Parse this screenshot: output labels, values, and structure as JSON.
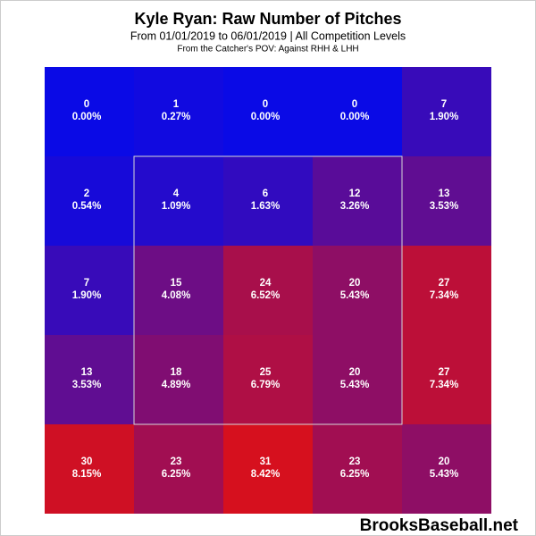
{
  "chart_data": {
    "type": "heatmap",
    "title": "Kyle Ryan: Raw Number of Pitches",
    "subtitle": "From 01/01/2019 to 06/01/2019 | All Competition Levels",
    "note": "From the Catcher's POV:  Against RHH & LHH",
    "watermark": "BrooksBaseball.net",
    "values": [
      [
        0,
        1,
        0,
        0,
        7
      ],
      [
        2,
        4,
        6,
        12,
        13
      ],
      [
        7,
        15,
        24,
        20,
        27
      ],
      [
        13,
        18,
        25,
        20,
        27
      ],
      [
        30,
        23,
        31,
        23,
        20
      ]
    ],
    "percents": [
      [
        0.0,
        0.27,
        0.0,
        0.0,
        1.9
      ],
      [
        0.54,
        1.09,
        1.63,
        3.26,
        3.53
      ],
      [
        1.9,
        4.08,
        6.52,
        5.43,
        7.34
      ],
      [
        3.53,
        4.89,
        6.79,
        5.43,
        7.34
      ],
      [
        8.15,
        6.25,
        8.42,
        6.25,
        5.43
      ]
    ],
    "value_labels": [
      [
        "0.00%",
        "0.27%",
        "0.00%",
        "0.00%",
        "1.90%"
      ],
      [
        "0.54%",
        "1.09%",
        "1.63%",
        "3.26%",
        "3.53%"
      ],
      [
        "1.90%",
        "4.08%",
        "6.52%",
        "5.43%",
        "7.34%"
      ],
      [
        "3.53%",
        "4.89%",
        "6.79%",
        "5.43%",
        "7.34%"
      ],
      [
        "8.15%",
        "6.25%",
        "8.42%",
        "6.25%",
        "5.43%"
      ]
    ],
    "color_low": "#0a0ae6",
    "color_high": "#d6101e"
  }
}
